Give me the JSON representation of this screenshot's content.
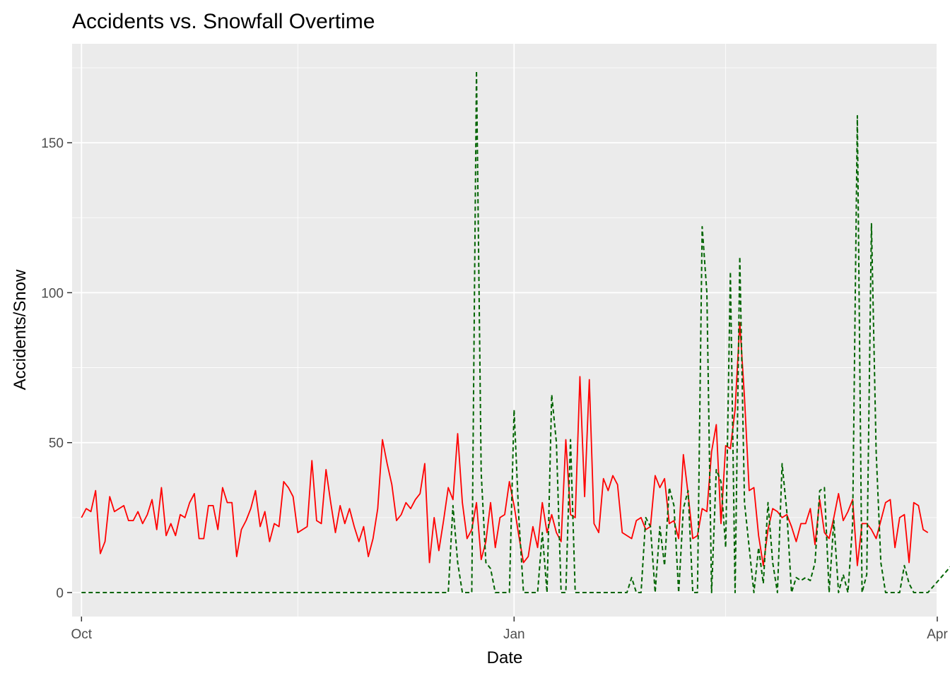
{
  "chart_data": {
    "type": "line",
    "title": "Accidents vs. Snowfall Overtime",
    "xlabel": "Date",
    "ylabel": "Accidents/Snow",
    "x_ticks": [
      "Oct",
      "Jan",
      "Apr"
    ],
    "y_ticks": [
      0,
      50,
      100,
      150
    ],
    "xlim": [
      "2022-09-29",
      "2023-04-01"
    ],
    "ylim": [
      -8,
      183
    ],
    "grid": true,
    "legend": "none",
    "colors": {
      "accidents": "#ff0000",
      "snow": "#006400",
      "panel": "#ebebeb",
      "grid": "#ffffff"
    },
    "series": [
      {
        "values_start": "2022-10-01",
        "line_style": "solid",
        "color": "#ff0000",
        "values": [
          25,
          28,
          27,
          34,
          13,
          17,
          32,
          27,
          28,
          29,
          24,
          24,
          27,
          23,
          26,
          31,
          21,
          35,
          19,
          23,
          19,
          26,
          25,
          30,
          33,
          18,
          18,
          29,
          29,
          21,
          35,
          30,
          30,
          12,
          21,
          24,
          28,
          34,
          22,
          27,
          17,
          23,
          22,
          37,
          35,
          32,
          20,
          21,
          22,
          44,
          24,
          23,
          41,
          30,
          20,
          29,
          23,
          28,
          22,
          17,
          22,
          12,
          18,
          28,
          51,
          43,
          36,
          24,
          26,
          30,
          28,
          31,
          33,
          43,
          10,
          25,
          14,
          24,
          35,
          31,
          53,
          30,
          18,
          21,
          30,
          11,
          17,
          30,
          15,
          25,
          26,
          37,
          29,
          19,
          10,
          12,
          22,
          15,
          30,
          20,
          26,
          20,
          17,
          51,
          26,
          25,
          72,
          32,
          71,
          23,
          20,
          38,
          34,
          39,
          36,
          20,
          19,
          18,
          24,
          25,
          21,
          22,
          39,
          35,
          38,
          23,
          24,
          18,
          46,
          33,
          18,
          19,
          28,
          27,
          47,
          56,
          23,
          49,
          48,
          61,
          90,
          65,
          34,
          35,
          19,
          9,
          21,
          28,
          27,
          25,
          26,
          22,
          17,
          23,
          23,
          28,
          16,
          31,
          20,
          18,
          25,
          33,
          24,
          27,
          31,
          9,
          23,
          23,
          21,
          18,
          24,
          30,
          31,
          15,
          25,
          26,
          10,
          30,
          29,
          21,
          20
        ]
      },
      {
        "values_start": "2022-10-01",
        "line_style": "dashed",
        "color": "#006400",
        "values": [
          0,
          0,
          0,
          0,
          0,
          0,
          0,
          0,
          0,
          0,
          0,
          0,
          0,
          0,
          0,
          0,
          0,
          0,
          0,
          0,
          0,
          0,
          0,
          0,
          0,
          0,
          0,
          0,
          0,
          0,
          0,
          0,
          0,
          0,
          0,
          0,
          0,
          0,
          0,
          0,
          0,
          0,
          0,
          0,
          0,
          0,
          0,
          0,
          0,
          0,
          0,
          0,
          0,
          0,
          0,
          0,
          0,
          0,
          0,
          0,
          0,
          0,
          0,
          0,
          0,
          0,
          0,
          0,
          0,
          0,
          0,
          0,
          0,
          0,
          0,
          0,
          0,
          0,
          0,
          0,
          0,
          0,
          0,
          0,
          0,
          0,
          0,
          0,
          0,
          0,
          0,
          0,
          0,
          0,
          0,
          0,
          0,
          0,
          0,
          0,
          0,
          0,
          0,
          0,
          0,
          0,
          0,
          0,
          0,
          0,
          0,
          0,
          0,
          0,
          0,
          0,
          0,
          0,
          0,
          0,
          0,
          0,
          0,
          0,
          0,
          0,
          0,
          0,
          0,
          0,
          0,
          0,
          0,
          0,
          0,
          0,
          0,
          0,
          0,
          0,
          0,
          0,
          0,
          0,
          0,
          0,
          0,
          0,
          0,
          0,
          0,
          0,
          0,
          0,
          0,
          0,
          0,
          0,
          0,
          0,
          0,
          0,
          0,
          0,
          0,
          0,
          0,
          0,
          0,
          0,
          0,
          0,
          0,
          0,
          0,
          0,
          0,
          0,
          0,
          0,
          0
        ],
        "overrides": {
          "79": 29,
          "80": 10,
          "82": 0,
          "84": 174,
          "85": 40,
          "86": 10,
          "87": 8,
          "88": 0,
          "90": 0,
          "91": 0,
          "92": 61,
          "93": 25,
          "94": 0,
          "95": 0,
          "96": 0,
          "97": 0,
          "98": 20,
          "99": 0,
          "100": 66,
          "101": 50,
          "102": 0,
          "103": 0,
          "104": 51,
          "105": 0,
          "116": 0,
          "117": 5,
          "118": 0,
          "119": 0,
          "120": 25,
          "121": 22,
          "122": 0,
          "123": 22,
          "124": 9,
          "125": 35,
          "126": 29,
          "127": 0,
          "128": 28,
          "129": 34,
          "130": 0,
          "131": 0,
          "132": 122,
          "133": 100,
          "134": 0,
          "135": 41,
          "136": 37,
          "137": 15,
          "138": 107,
          "139": 0,
          "140": 112,
          "141": 30,
          "142": 15,
          "143": 0,
          "144": 15,
          "145": 3,
          "146": 30,
          "147": 10,
          "148": 0,
          "149": 43,
          "150": 27,
          "151": 0,
          "152": 5,
          "153": 4,
          "154": 5,
          "155": 4,
          "156": 10,
          "157": 34,
          "158": 35,
          "159": 0,
          "160": 24,
          "161": 0,
          "162": 6,
          "163": 0,
          "164": 23,
          "165": 159,
          "166": 0,
          "167": 6,
          "168": 123,
          "169": 47,
          "170": 10,
          "171": 0,
          "175": 9,
          "176": 3,
          "177": 0,
          "190": 18,
          "191": 0
        }
      }
    ]
  }
}
